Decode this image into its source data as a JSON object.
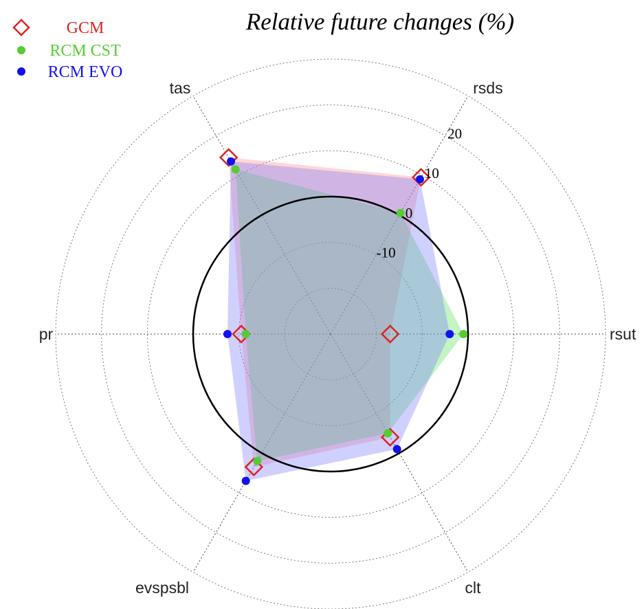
{
  "chart_data": {
    "type": "radar",
    "title": "Relative future changes (%)",
    "axes": [
      "rsut",
      "rsds",
      "tas",
      "pr",
      "evspsbl",
      "clt"
    ],
    "r_ticks": [
      -10,
      0,
      10,
      20
    ],
    "r_range": [
      -30,
      30
    ],
    "reference_circle": 0,
    "grid": true,
    "legend_position": "top-left",
    "series": [
      {
        "name": "GCM",
        "color": "#dd2222",
        "fill": "#ff8a8a",
        "marker": "diamond",
        "values": {
          "rsut": -17,
          "rsds": 9.5,
          "tas": 14.5,
          "pr": -10.5,
          "evspsbl": 3.5,
          "clt": -4
        }
      },
      {
        "name": "RCM CST",
        "color": "#55cc33",
        "fill": "#55e055",
        "marker": "circle",
        "values": {
          "rsut": -1,
          "rsds": 0.5,
          "tas": 11.5,
          "pr": -11.5,
          "evspsbl": 2,
          "clt": -5
        }
      },
      {
        "name": "RCM EVO",
        "color": "#1111ee",
        "fill": "#7777ff",
        "marker": "circle",
        "values": {
          "rsut": -4,
          "rsds": 9,
          "tas": 13.5,
          "pr": -7.5,
          "evspsbl": 7,
          "clt": -1
        }
      }
    ]
  }
}
